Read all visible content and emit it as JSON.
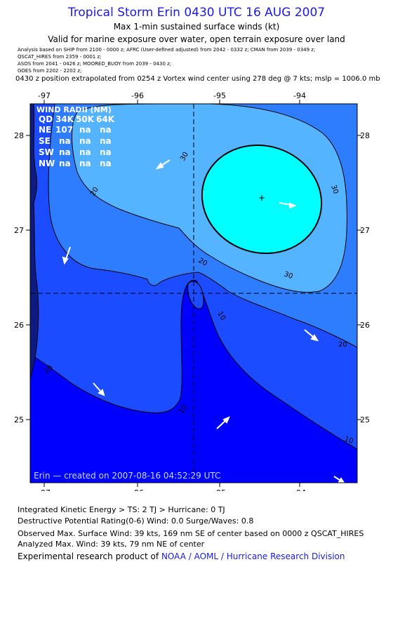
{
  "header": {
    "title": "Tropical Storm Erin 0430 UTC 16 AUG 2007",
    "subtitle1": "Max 1-min sustained surface winds (kt)",
    "subtitle2": "Valid for marine exposure over water, open terrain exposure over land",
    "analysis_lines": [
      "Analysis based on  SHIP from 2100 - 0000 z;  AFRC (User-defined adjusted) from 2042 - 0332 z;  CMAN from 2039 - 0349 z;",
      "QSCAT_HIRES from 2359 - 0001 z;",
      "ASOS from 2041 - 0426 z;  MOORED_BUOY from 2039 - 0430 z;",
      "GOES from 2202 - 2202 z;"
    ],
    "position_line": "0430 z position extrapolated from 0254 z Vortex wind center using 278 deg @ 7 kts; mslp = 1006.0 mb"
  },
  "map": {
    "lon_ticks": [
      "-97",
      "-96",
      "-95",
      "-94"
    ],
    "lat_ticks": [
      "28",
      "27",
      "26",
      "25"
    ],
    "contour_labels": [
      "30",
      "20",
      "30",
      "20",
      "30",
      "10",
      "20",
      "10",
      "10",
      "10"
    ],
    "wind_radii_table": {
      "header": "WIND RADII (NM)",
      "columns": [
        "QD",
        "34K",
        "50K",
        "64K"
      ],
      "rows": [
        [
          "NE",
          "107",
          "na",
          "na"
        ],
        [
          "SE",
          "na",
          "na",
          "na"
        ],
        [
          "SW",
          "na",
          "na",
          "na"
        ],
        [
          "NW",
          "na",
          "na",
          "na"
        ]
      ]
    },
    "center_marker": "+",
    "created_label": "Erin  —  created on 2007-08-16 04:52:29 UTC",
    "colors": {
      "frame": "#000000",
      "level_0_10": "#0000ff",
      "level_10_20": "#1c4cff",
      "level_20_30": "#2f7dff",
      "level_30_max": "#55b4ff",
      "core_34kt": "#00ffff",
      "land": "#0d1a80"
    }
  },
  "footer": {
    "ike": "Integrated Kinetic Energy > TS: 2 TJ   > Hurricane: 0 TJ",
    "dpr": "Destructive Potential Rating(0-6)   Wind: 0.0 Surge/Waves: 0.8",
    "observed": "Observed Max. Surface Wind: 39 kts, 169 nm SE of center based on 0000 z QSCAT_HIRES",
    "analyzed": "Analyzed Max. Wind: 39 kts, 79 nm NE of center",
    "credit_prefix": "Experimental research product of",
    "credit_link": "NOAA / AOML / Hurricane Research Division"
  }
}
